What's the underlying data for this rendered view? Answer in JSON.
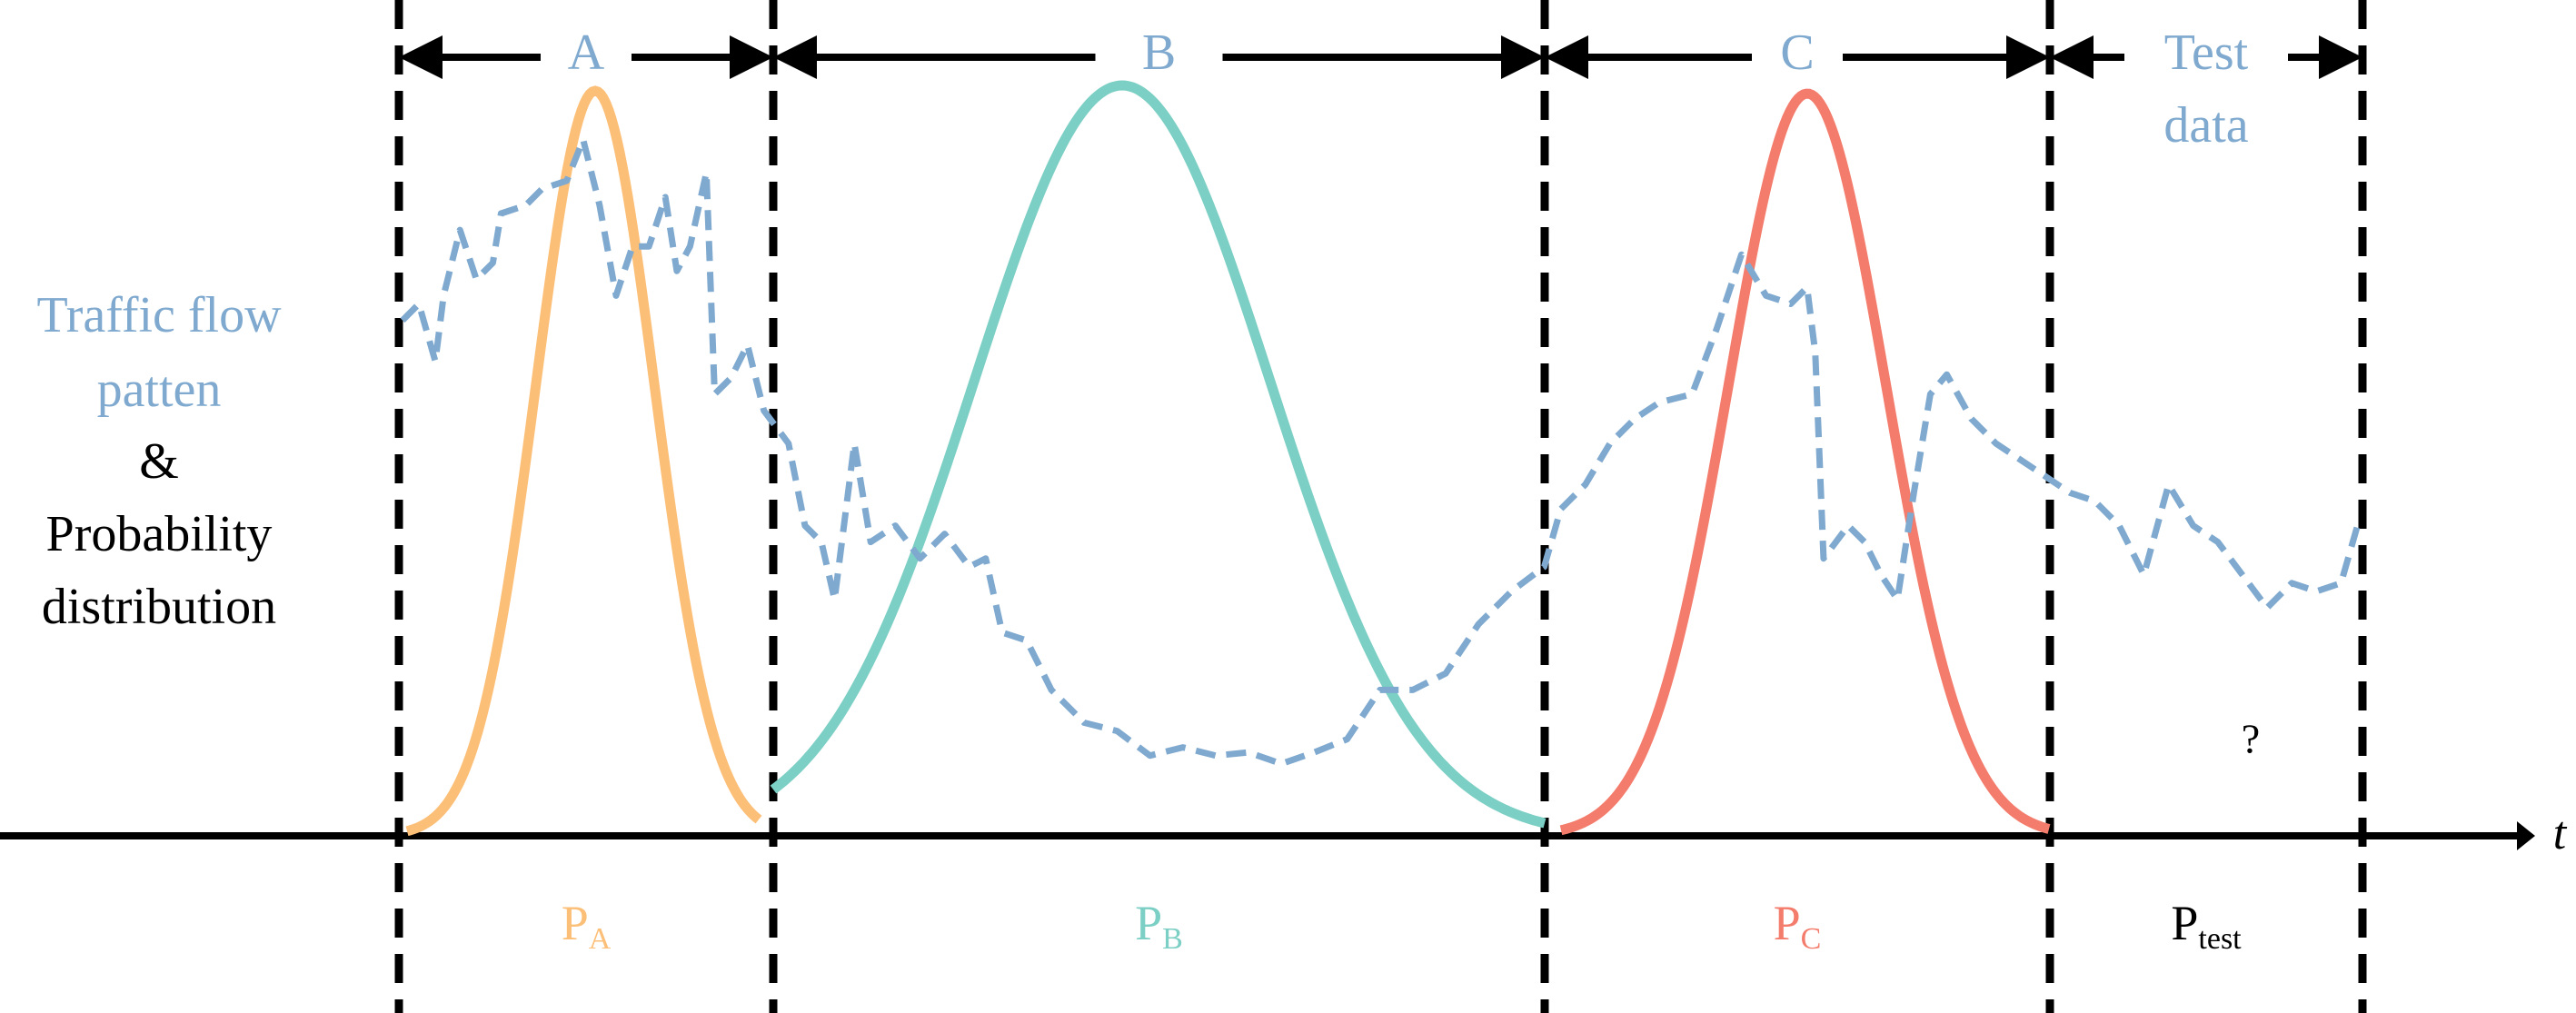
{
  "left_label": {
    "lines": [
      "Traffic flow",
      "patten",
      "&",
      "Probability",
      "distribution"
    ]
  },
  "segments": [
    {
      "label": [
        "A"
      ],
      "prob": "P",
      "sub": "A"
    },
    {
      "label": [
        "B"
      ],
      "prob": "P",
      "sub": "B"
    },
    {
      "label": [
        "C"
      ],
      "prob": "P",
      "sub": "C"
    },
    {
      "label": [
        "Test",
        "data"
      ],
      "prob": "P",
      "sub": "test"
    }
  ],
  "question": "?",
  "axis_label": "t"
}
